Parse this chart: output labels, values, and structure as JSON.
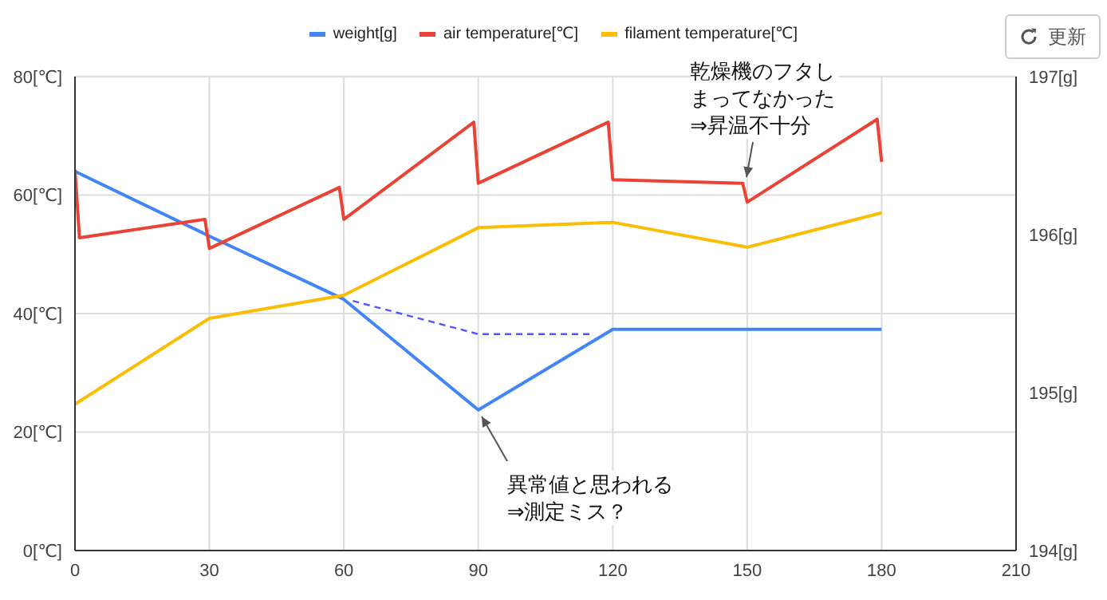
{
  "chart_data": {
    "type": "line",
    "xlim": [
      0,
      210
    ],
    "xticks": [
      0,
      30,
      60,
      90,
      120,
      150,
      180,
      210
    ],
    "ylim": [
      0,
      80
    ],
    "yticks": [
      {
        "value": 0,
        "label": "0[℃]"
      },
      {
        "value": 20,
        "label": "20[℃]"
      },
      {
        "value": 40,
        "label": "40[℃]"
      },
      {
        "value": 60,
        "label": "60[℃]"
      },
      {
        "value": 80,
        "label": "80[℃]"
      }
    ],
    "y2lim": [
      194,
      197
    ],
    "y2ticks": [
      {
        "value": 194,
        "label": "194[g]"
      },
      {
        "value": 195,
        "label": "195[g]"
      },
      {
        "value": 196,
        "label": "196[g]"
      },
      {
        "value": 197,
        "label": "197[g]"
      }
    ],
    "grid": true,
    "legend": "top",
    "marker": "none",
    "line_style": "solid",
    "series": [
      {
        "name": "weight[g]",
        "color": "#4285f4",
        "axis": "y2",
        "x": [
          0,
          30,
          60,
          90,
          120,
          180
        ],
        "values": [
          196.4,
          195.99,
          195.59,
          194.89,
          195.4,
          195.4
        ]
      },
      {
        "name": "air temperature[℃]",
        "color": "#ea4335",
        "x": [
          0,
          1,
          29,
          30,
          59,
          60,
          89,
          90,
          119,
          120,
          149,
          150,
          179,
          180
        ],
        "values": [
          64.3,
          52.8,
          55.9,
          51,
          61.3,
          55.9,
          72.3,
          62,
          72.3,
          62.6,
          62,
          58.8,
          72.8,
          65.6
        ]
      },
      {
        "name": "filament temperature[℃]",
        "color": "#fbbc04",
        "x": [
          0,
          30,
          60,
          90,
          120,
          150,
          180
        ],
        "values": [
          24.7,
          39.2,
          43.1,
          54.5,
          55.4,
          51.2,
          57
        ]
      },
      {
        "color": "#5555ff",
        "axis": "y2",
        "line_style": "dashed",
        "x": [
          62,
          90,
          115
        ],
        "values": [
          195.58,
          195.37,
          195.37
        ]
      }
    ],
    "annotations": [
      {
        "text": "異常値と思われる⇒測定ミス？",
        "x": 90,
        "y": 23.7
      },
      {
        "text": "乾燥機のフタしまってなかった⇒昇温不十分",
        "x": 149,
        "y": 62
      },
      "更新"
    ]
  }
}
